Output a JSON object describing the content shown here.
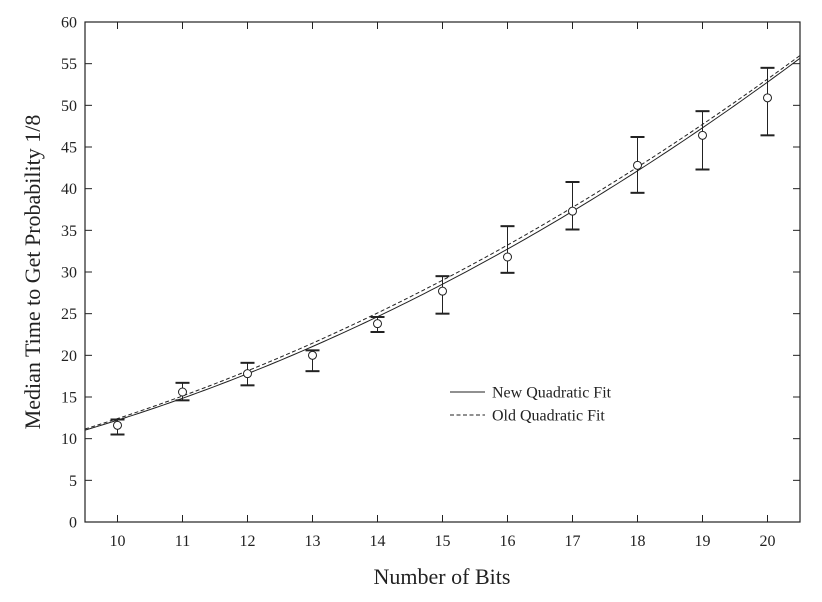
{
  "chart_data": {
    "type": "scatter",
    "title": "",
    "xlabel": "Number of Bits",
    "ylabel": "Median Time to Get Probability 1/8",
    "xlim": [
      9.5,
      20.5
    ],
    "ylim": [
      0,
      60
    ],
    "xticks": [
      10,
      11,
      12,
      13,
      14,
      15,
      16,
      17,
      18,
      19,
      20
    ],
    "yticks": [
      0,
      5,
      10,
      15,
      20,
      25,
      30,
      35,
      40,
      45,
      50,
      55,
      60
    ],
    "grid": false,
    "legend_position": "center-right",
    "points": [
      {
        "x": 10,
        "y": 11.6,
        "lo": 10.5,
        "hi": 12.3
      },
      {
        "x": 11,
        "y": 15.6,
        "lo": 14.6,
        "hi": 16.7
      },
      {
        "x": 12,
        "y": 17.8,
        "lo": 16.4,
        "hi": 19.1
      },
      {
        "x": 13,
        "y": 20.0,
        "lo": 18.1,
        "hi": 20.6
      },
      {
        "x": 14,
        "y": 23.8,
        "lo": 22.8,
        "hi": 24.6
      },
      {
        "x": 15,
        "y": 27.7,
        "lo": 25.0,
        "hi": 29.5
      },
      {
        "x": 16,
        "y": 31.8,
        "lo": 29.9,
        "hi": 35.5
      },
      {
        "x": 17,
        "y": 37.3,
        "lo": 35.1,
        "hi": 40.8
      },
      {
        "x": 18,
        "y": 42.8,
        "lo": 39.5,
        "hi": 46.2
      },
      {
        "x": 19,
        "y": 46.4,
        "lo": 42.3,
        "hi": 49.3
      },
      {
        "x": 20,
        "y": 50.9,
        "lo": 46.4,
        "hi": 54.5
      }
    ],
    "series": [
      {
        "name": "New Quadratic Fit",
        "style": "solid",
        "coef": [
          0.1587,
          -0.7044,
          3.3933
        ]
      },
      {
        "name": "Old Quadratic Fit",
        "style": "dashed",
        "coef": [
          0.1508,
          -0.4496,
          1.82
        ]
      }
    ]
  }
}
